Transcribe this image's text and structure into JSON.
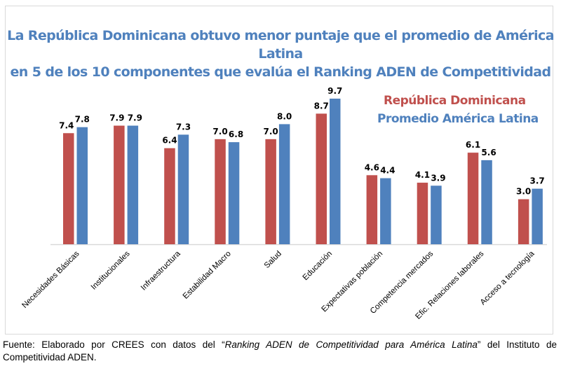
{
  "chart_data": {
    "type": "bar",
    "title": "La República Dominicana obtuvo menor puntaje que el promedio de América Latina en 5 de los 10 componentes que evalúa el Ranking ADEN de Competitividad",
    "title_lines": [
      "La República Dominicana obtuvo menor puntaje que el promedio de América Latina",
      "en 5 de los 10 componentes que evalúa el Ranking ADEN de Competitividad"
    ],
    "xlabel": "",
    "ylabel": "",
    "ylim": [
      0,
      10
    ],
    "grid": false,
    "legend_position": "top-right",
    "categories": [
      "Necesidades Básicas",
      "Institucionales",
      "Infraestructura",
      "Estabilidad Macro",
      "Salud",
      "Educación",
      "Expectativas población",
      "Competencia mercados",
      "Efic. Relaciones laborales",
      "Acceso a tecnología"
    ],
    "series": [
      {
        "name": "República Dominicana",
        "color": "#c0504d",
        "values": [
          7.4,
          7.9,
          6.4,
          7.0,
          7.0,
          8.7,
          4.6,
          4.1,
          6.1,
          3.0
        ]
      },
      {
        "name": "Promedio América Latina",
        "color": "#4f81bd",
        "values": [
          7.8,
          7.9,
          7.3,
          6.8,
          8.0,
          9.7,
          4.4,
          3.9,
          5.6,
          3.7
        ]
      }
    ]
  },
  "source": {
    "prefix": "Fuente: Elaborado por CREES con datos del “",
    "italic": "Ranking ADEN de Competitividad para América Latina",
    "suffix": "” del Instituto  de Competitividad ADEN."
  }
}
